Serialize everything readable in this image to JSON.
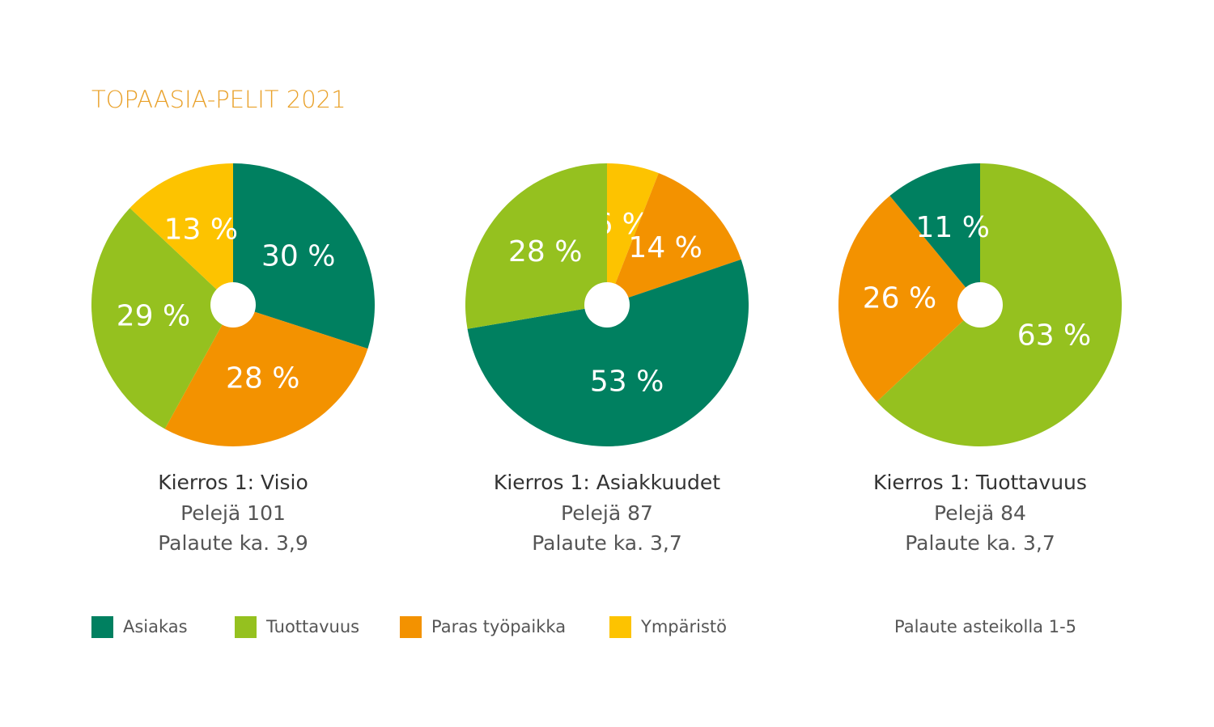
{
  "title": "TOPAASIA-PELIT 2021",
  "chart_data": [
    {
      "type": "pie",
      "title": "Kierros 1: Visio",
      "subtitle": [
        "Pelejä 101",
        "Palaute ka. 3,9"
      ],
      "categories": [
        "Asiakas",
        "Paras työpaikka",
        "Tuottavuus",
        "Ympäristö"
      ],
      "values": [
        30,
        28,
        29,
        13
      ],
      "value_labels": [
        "30 %",
        "28 %",
        "29 %",
        "13 %"
      ],
      "colors": [
        "#008060",
        "#f39200",
        "#95c11f",
        "#fdc300"
      ]
    },
    {
      "type": "pie",
      "title": "Kierros 1: Asiakkuudet",
      "subtitle": [
        "Pelejä 87",
        "Palaute ka. 3,7"
      ],
      "categories": [
        "Ympäristö",
        "Paras työpaikka",
        "Asiakas",
        "Tuottavuus"
      ],
      "values": [
        6,
        14,
        53,
        28
      ],
      "value_labels": [
        "6 %",
        "14 %",
        "53 %",
        "28 %"
      ],
      "colors": [
        "#fdc300",
        "#f39200",
        "#008060",
        "#95c11f"
      ]
    },
    {
      "type": "pie",
      "title": "Kierros 1: Tuottavuus",
      "subtitle": [
        "Pelejä 84",
        "Palaute ka. 3,7"
      ],
      "categories": [
        "Tuottavuus",
        "Paras työpaikka",
        "Asiakas"
      ],
      "values": [
        63,
        26,
        11
      ],
      "value_labels": [
        "63 %",
        "26 %",
        "11 %"
      ],
      "colors": [
        "#95c11f",
        "#f39200",
        "#008060"
      ]
    }
  ],
  "legend": {
    "items": [
      {
        "name": "Asiakas",
        "color": "#008060"
      },
      {
        "name": "Tuottavuus",
        "color": "#95c11f"
      },
      {
        "name": "Paras työpaikka",
        "color": "#f39200"
      },
      {
        "name": "Ympäristö",
        "color": "#fdc300"
      }
    ]
  },
  "note": "Palaute asteikolla 1-5"
}
